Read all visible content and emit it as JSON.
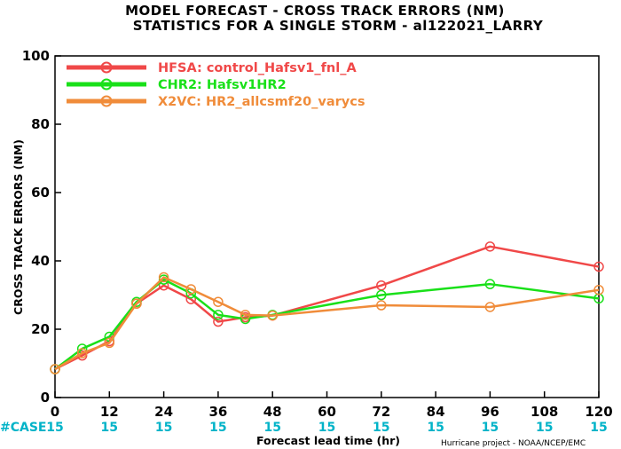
{
  "title_line1": "MODEL FORECAST - CROSS TRACK ERRORS (NM)",
  "title_line2": "STATISTICS FOR A SINGLE STORM - al122021_LARRY",
  "credit": "Hurricane project - NOAA/NCEP/EMC",
  "case_label": "#CASE",
  "case_counts": [
    "15",
    "15",
    "15",
    "15",
    "15",
    "15",
    "15",
    "15",
    "15",
    "15",
    "15"
  ],
  "case_color": "#00b3c8",
  "chart_data": {
    "type": "line",
    "xlabel": "Forecast lead time (hr)",
    "ylabel": "CROSS TRACK ERRORS (NM)",
    "xlim": [
      0,
      120
    ],
    "ylim": [
      0,
      100
    ],
    "xticks": [
      0,
      12,
      24,
      36,
      48,
      60,
      72,
      84,
      96,
      108,
      120
    ],
    "yticks": [
      0,
      20,
      40,
      60,
      80,
      100
    ],
    "grid": false,
    "legend_position": "top-left",
    "series": [
      {
        "name": "HFSA: control_Hafsv1_fnl_A",
        "color": "#f04848",
        "x": [
          0,
          6,
          12,
          18,
          24,
          30,
          36,
          42,
          48,
          72,
          96,
          120
        ],
        "y": [
          8.3,
          12.3,
          16.5,
          27.5,
          32.8,
          28.8,
          22.2,
          23.5,
          24.0,
          32.8,
          44.2,
          38.3
        ]
      },
      {
        "name": "CHR2: Hafsv1HR2",
        "color": "#19e019",
        "x": [
          0,
          6,
          12,
          18,
          24,
          30,
          36,
          42,
          48,
          72,
          96,
          120
        ],
        "y": [
          8.3,
          14.3,
          17.8,
          28.0,
          34.5,
          30.5,
          24.2,
          23.0,
          24.2,
          30.0,
          33.2,
          29.0
        ]
      },
      {
        "name": "X2VC: HR2_allcsmf20_varycs",
        "color": "#f08c3a",
        "x": [
          0,
          6,
          12,
          18,
          24,
          30,
          36,
          42,
          48,
          72,
          96,
          120
        ],
        "y": [
          8.3,
          13.0,
          16.0,
          27.5,
          35.2,
          31.7,
          28.0,
          24.2,
          24.0,
          27.0,
          26.5,
          31.5
        ]
      }
    ]
  }
}
